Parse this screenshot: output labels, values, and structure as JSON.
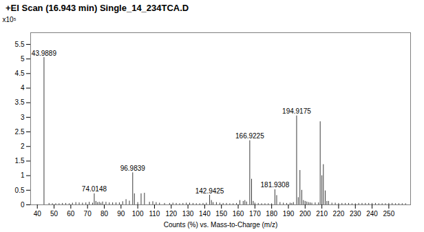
{
  "chart_data": {
    "type": "stem",
    "title": "+EI Scan (16.943 min) Single_14_234TCA.D",
    "xlabel": "Counts (%) vs. Mass-to-Charge (m/z)",
    "ylabel": "x10⁵",
    "x": [
      43.9889,
      47.0,
      49.0,
      51.0,
      53.0,
      55.0,
      57.0,
      59.0,
      61.0,
      63.0,
      65.0,
      67.0,
      69.0,
      71.0,
      73.0,
      74.0148,
      75.0,
      76.0,
      77.0,
      78.0,
      79.0,
      81.0,
      83.0,
      85.0,
      87.0,
      89.0,
      91.0,
      93.0,
      95.0,
      96.9839,
      98.0,
      100.0,
      102.0,
      104.0,
      107.0,
      109.0,
      111.0,
      113.0,
      116.0,
      119.0,
      121.0,
      123.0,
      125.0,
      127.0,
      129.0,
      131.0,
      133.0,
      135.0,
      137.0,
      139.0,
      141.0,
      142.9425,
      144.0,
      145.0,
      147.0,
      149.0,
      151.0,
      153.0,
      155.0,
      157.0,
      159.0,
      161.0,
      163.0,
      164.0,
      165.0,
      166.9225,
      168.0,
      169.0,
      170.0,
      172.0,
      174.0,
      176.0,
      178.0,
      180.0,
      181.9308,
      183.0,
      185.0,
      187.0,
      189.0,
      191.0,
      192.0,
      193.0,
      194.9175,
      195.9,
      196.9,
      198.0,
      199.0,
      200.0,
      201.0,
      202.0,
      203.0,
      204.0,
      206.0,
      208.0,
      209.0,
      210.0,
      210.9,
      212.0,
      213.0,
      214.0,
      216.0,
      218.0,
      220.0,
      222.0,
      224.0,
      226.0,
      228.0,
      230.0,
      232.0,
      234.0,
      236.0,
      238.0,
      240.0,
      242.0,
      244.0,
      246.0,
      248.0,
      250.0,
      252.0,
      254.0,
      256.0,
      258.0,
      260.0
    ],
    "values": [
      5.05,
      0.05,
      0.04,
      0.04,
      0.04,
      0.05,
      0.05,
      0.04,
      0.06,
      0.08,
      0.07,
      0.06,
      0.07,
      0.09,
      0.06,
      0.38,
      0.12,
      0.08,
      0.09,
      0.06,
      0.1,
      0.09,
      0.07,
      0.07,
      0.07,
      0.07,
      0.11,
      0.18,
      0.13,
      1.1,
      0.38,
      0.08,
      0.38,
      0.4,
      0.09,
      0.11,
      0.08,
      0.06,
      0.05,
      0.05,
      0.06,
      0.05,
      0.04,
      0.05,
      0.06,
      0.06,
      0.05,
      0.04,
      0.04,
      0.05,
      0.06,
      0.33,
      0.15,
      0.08,
      0.08,
      0.06,
      0.05,
      0.05,
      0.04,
      0.04,
      0.05,
      0.15,
      0.12,
      0.15,
      0.1,
      2.2,
      0.88,
      0.12,
      0.06,
      0.05,
      0.04,
      0.04,
      0.04,
      0.04,
      0.52,
      0.32,
      0.08,
      0.06,
      0.05,
      0.06,
      0.05,
      0.08,
      3.05,
      0.25,
      1.18,
      0.5,
      0.15,
      0.12,
      0.1,
      0.08,
      0.07,
      0.06,
      0.07,
      0.07,
      2.85,
      1.0,
      1.38,
      0.48,
      0.12,
      0.12,
      0.06,
      0.06,
      0.05,
      0.05,
      0.05,
      0.05,
      0.04,
      0.04,
      0.05,
      0.05,
      0.05,
      0.05,
      0.05,
      0.05,
      0.04,
      0.04,
      0.04,
      0.05,
      0.05,
      0.04,
      0.04,
      0.04,
      0.04
    ],
    "color": "#3a3a3a",
    "annotations": [
      {
        "x": 43.9889,
        "y": 5.05,
        "text": "43.9889"
      },
      {
        "x": 74.0148,
        "y": 0.38,
        "text": "74.0148"
      },
      {
        "x": 96.9839,
        "y": 1.1,
        "text": "96.9839"
      },
      {
        "x": 142.9425,
        "y": 0.33,
        "text": "142.9425"
      },
      {
        "x": 166.9225,
        "y": 2.2,
        "text": "166.9225"
      },
      {
        "x": 181.9308,
        "y": 0.52,
        "text": "181.9308"
      },
      {
        "x": 194.9175,
        "y": 3.05,
        "text": "194.9175"
      }
    ],
    "xlim": [
      36,
      263
    ],
    "ylim": [
      0,
      5.9
    ],
    "xticks": [
      40,
      50,
      60,
      70,
      80,
      90,
      100,
      110,
      120,
      130,
      140,
      150,
      160,
      170,
      180,
      190,
      200,
      210,
      220,
      230,
      240,
      250
    ],
    "yticks": [
      0,
      0.5,
      1.0,
      1.5,
      2.0,
      2.5,
      3.0,
      3.5,
      4.0,
      4.5,
      5.0,
      5.5
    ],
    "grid": false
  }
}
